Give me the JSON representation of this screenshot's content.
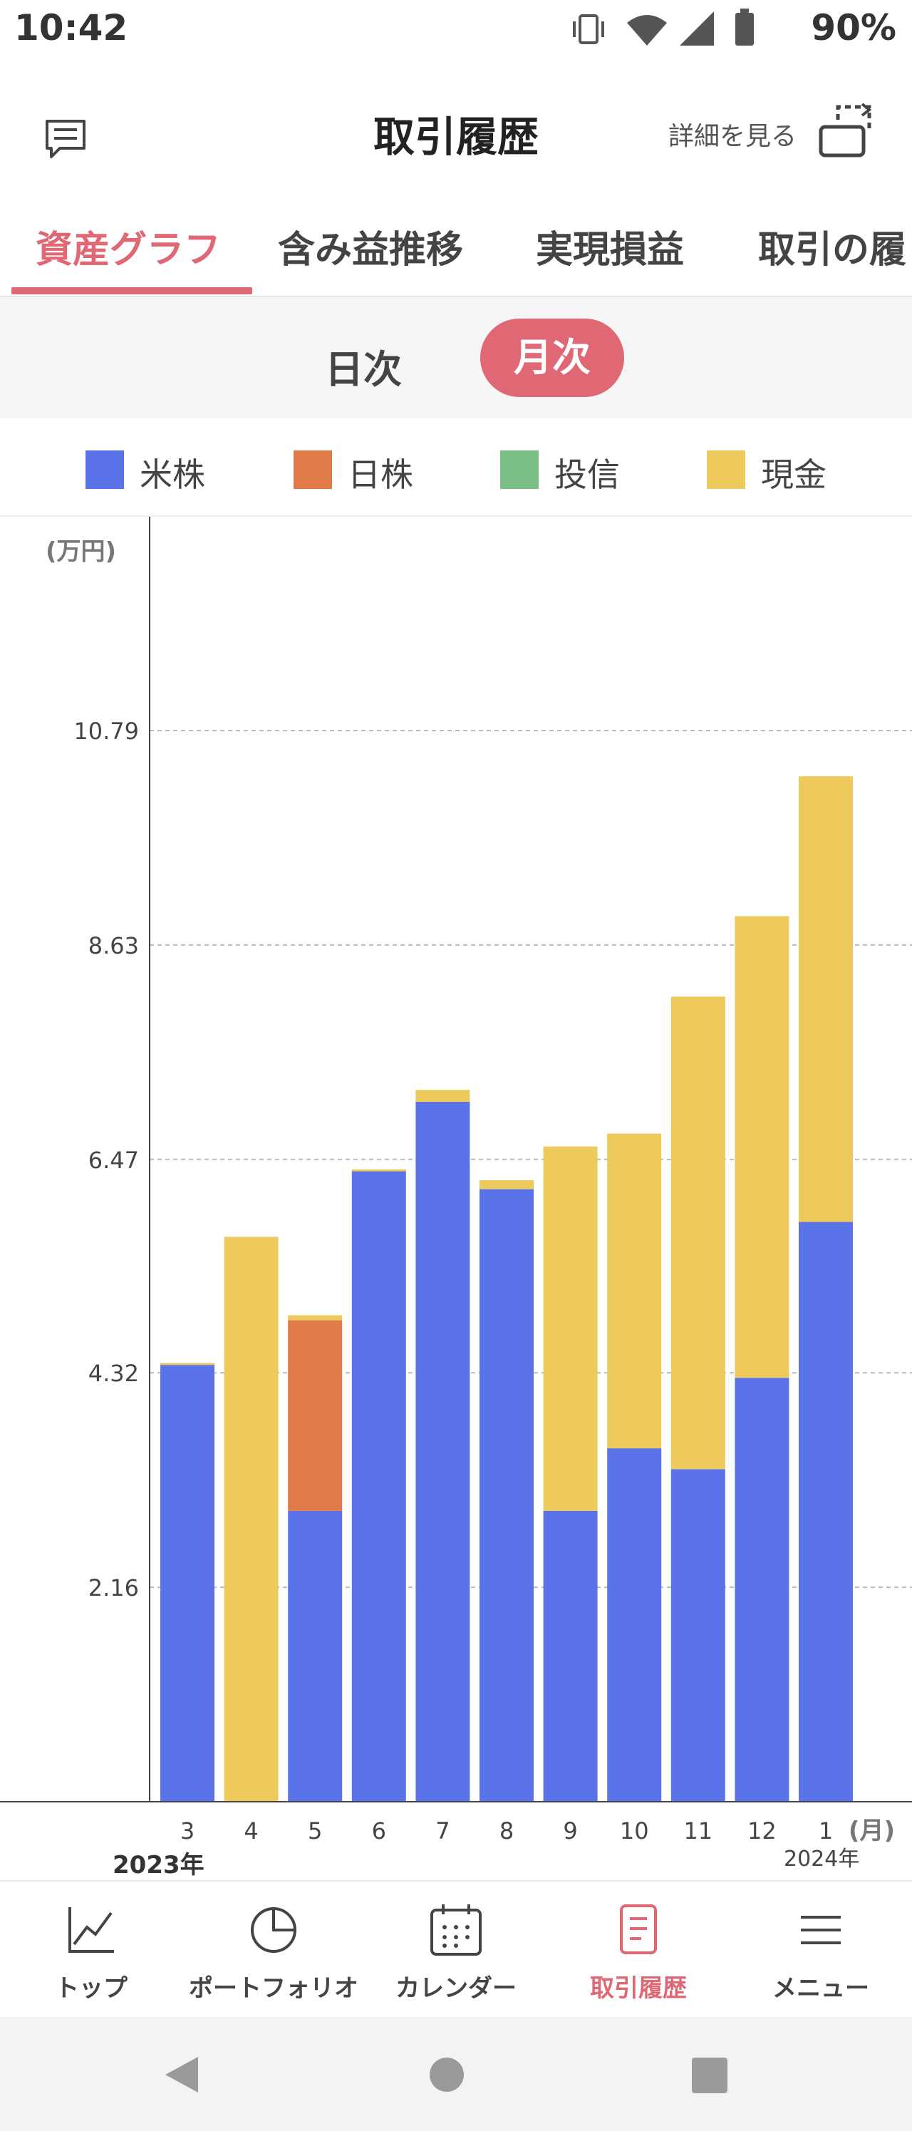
{
  "status_bar": {
    "time": "10:42",
    "battery": "90%"
  },
  "header": {
    "title": "取引履歴",
    "detail_link": "詳細を見る"
  },
  "tabs": [
    {
      "label": "資産グラフ",
      "active": true
    },
    {
      "label": "含み益推移",
      "active": false
    },
    {
      "label": "実現損益",
      "active": false
    },
    {
      "label": "取引の履",
      "active": false
    }
  ],
  "period": {
    "daily": "日次",
    "monthly": "月次",
    "selected": "monthly"
  },
  "colors": {
    "us_stock": "#5b73e8",
    "jp_stock": "#e07b48",
    "fund": "#7bbf85",
    "cash": "#eec95c",
    "accent": "#e06875"
  },
  "chart_data": {
    "type": "bar",
    "stacked": true,
    "unit": "(万円)",
    "x_unit": "(月)",
    "categories": [
      "3",
      "4",
      "5",
      "6",
      "7",
      "8",
      "9",
      "10",
      "11",
      "12",
      "1"
    ],
    "year_labels": [
      {
        "label": "2023年",
        "category": "3"
      },
      {
        "label": "2024年",
        "category": "1"
      }
    ],
    "yticks": [
      2.16,
      4.32,
      6.47,
      8.63,
      10.79
    ],
    "ylim": [
      0,
      12.9
    ],
    "grid": true,
    "legend_position": "top",
    "series": [
      {
        "name": "米株",
        "color": "#5b73e8",
        "values": [
          4.4,
          0,
          2.93,
          6.35,
          7.05,
          6.17,
          2.93,
          3.56,
          3.35,
          4.27,
          5.84
        ]
      },
      {
        "name": "日株",
        "color": "#e07b48",
        "values": [
          0,
          0,
          1.92,
          0,
          0,
          0,
          0,
          0,
          0,
          0,
          0
        ]
      },
      {
        "name": "投信",
        "color": "#7bbf85",
        "values": [
          0,
          0,
          0,
          0,
          0,
          0,
          0,
          0,
          0,
          0,
          0
        ]
      },
      {
        "name": "現金",
        "color": "#eec95c",
        "values": [
          0.02,
          5.69,
          0.05,
          0.02,
          0.12,
          0.09,
          3.67,
          3.17,
          4.76,
          4.65,
          4.49
        ]
      }
    ]
  },
  "nav": [
    {
      "label": "トップ",
      "icon": "line-chart-icon",
      "active": false
    },
    {
      "label": "ポートフォリオ",
      "icon": "pie-chart-icon",
      "active": false
    },
    {
      "label": "カレンダー",
      "icon": "calendar-icon",
      "active": false
    },
    {
      "label": "取引履歴",
      "icon": "document-icon",
      "active": true
    },
    {
      "label": "メニュー",
      "icon": "menu-icon",
      "active": false
    }
  ]
}
